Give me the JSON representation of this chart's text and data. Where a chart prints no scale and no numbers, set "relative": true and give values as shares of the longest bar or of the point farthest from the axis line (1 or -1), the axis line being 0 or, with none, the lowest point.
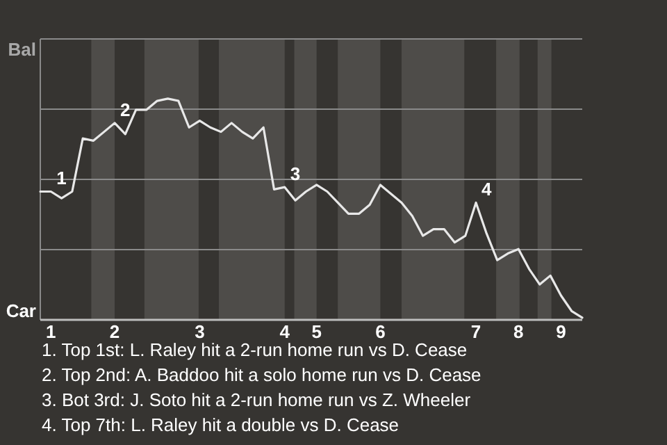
{
  "chart_data": {
    "type": "line",
    "relative": true,
    "categories": [
      null,
      "1",
      null,
      null,
      null,
      null,
      null,
      "2",
      null,
      null,
      null,
      null,
      null,
      null,
      null,
      "3",
      null,
      null,
      null,
      null,
      null,
      null,
      null,
      "4",
      null,
      null,
      "5",
      null,
      null,
      null,
      null,
      null,
      "6",
      null,
      null,
      null,
      null,
      null,
      null,
      null,
      null,
      "7",
      null,
      null,
      null,
      "8",
      null,
      null,
      null,
      "9",
      null,
      null
    ],
    "series": [
      {
        "color": "#e8e8e8",
        "values": [
          0.58,
          0.58,
          0.55,
          0.58,
          0.82,
          0.81,
          0.85,
          0.89,
          0.84,
          0.95,
          0.95,
          0.99,
          1,
          0.99,
          0.87,
          0.9,
          0.87,
          0.85,
          0.89,
          0.85,
          0.82,
          0.87,
          0.59,
          0.6,
          0.54,
          0.58,
          0.61,
          0.58,
          0.53,
          0.48,
          0.48,
          0.52,
          0.61,
          0.57,
          0.53,
          0.47,
          0.38,
          0.41,
          0.41,
          0.35,
          0.38,
          0.53,
          0.39,
          0.27,
          0.3,
          0.32,
          0.23,
          0.16,
          0.2,
          0.11,
          0.04,
          0.01
        ]
      }
    ],
    "grid": "y",
    "marker": "none",
    "line_style": "solid",
    "annotations": [
      "Bal",
      "Car",
      {
        "text": "1",
        "x": "1",
        "y": 0.58
      },
      {
        "text": "2",
        "x": "2",
        "y": 0.89
      },
      {
        "text": "3",
        "x": "4",
        "y": 0.6
      },
      {
        "text": "4",
        "x": "7",
        "y": 0.53
      },
      "1. Top 1st: L. Raley hit a 2-run home run vs D. Cease",
      "2. Top 2nd: A. Baddoo hit a solo home run vs D. Cease",
      "3. Bot 3rd: J. Soto hit a 2-run home run vs Z. Wheeler",
      "4. Top 7th: L. Raley hit a double vs D. Cease"
    ]
  }
}
